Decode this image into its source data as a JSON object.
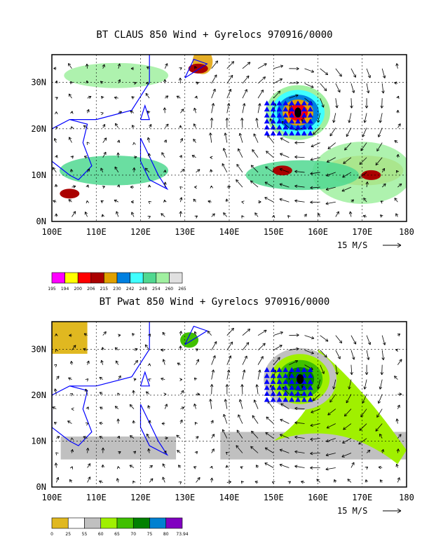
{
  "chart_data": [
    {
      "type": "heatmap",
      "title": "BT CLAUS 850 Wind + Gyrelocs 970916/0000",
      "variable": "CLAUS brightness temperature",
      "overlays": [
        "850 hPa wind vectors",
        "gyre location markers"
      ],
      "xticks": [
        "100E",
        "110E",
        "120E",
        "130E",
        "140E",
        "150E",
        "160E",
        "170E",
        "180"
      ],
      "yticks": [
        "0N",
        "10N",
        "20N",
        "30N"
      ],
      "xlim": [
        100,
        180
      ],
      "ylim": [
        0,
        36
      ],
      "grid": true,
      "vector_reference": "15 M/S",
      "legend": {
        "labels": [
          "195",
          "194",
          "200",
          "206",
          "215",
          "230",
          "242",
          "248",
          "254",
          "260",
          "265"
        ],
        "colors": [
          "#ff00ff",
          "#ffff00",
          "#ff0000",
          "#aa0000",
          "#e0a000",
          "#0080e0",
          "#40ffff",
          "#50d890",
          "#a0f0a0",
          "#e0e0e0"
        ]
      },
      "gyre_center": [
        155.5,
        23.5
      ]
    },
    {
      "type": "heatmap",
      "title": "BT Pwat 850 Wind + Gyrelocs 970916/0000",
      "variable": "precipitable water",
      "overlays": [
        "850 hPa wind vectors",
        "gyre location markers"
      ],
      "xticks": [
        "100E",
        "110E",
        "120E",
        "130E",
        "140E",
        "150E",
        "160E",
        "170E",
        "180"
      ],
      "yticks": [
        "0N",
        "10N",
        "20N",
        "30N"
      ],
      "xlim": [
        100,
        180
      ],
      "ylim": [
        0,
        36
      ],
      "grid": true,
      "vector_reference": "15 M/S",
      "legend": {
        "labels": [
          "0",
          "25",
          "55",
          "60",
          "65",
          "70",
          "75",
          "80",
          "73.94"
        ],
        "colors": [
          "#e0b820",
          "#ffffff",
          "#c0c0c0",
          "#a0f000",
          "#40c000",
          "#008000",
          "#0080d0",
          "#8000c0"
        ]
      },
      "gyre_center": [
        156,
        23.5
      ]
    }
  ]
}
